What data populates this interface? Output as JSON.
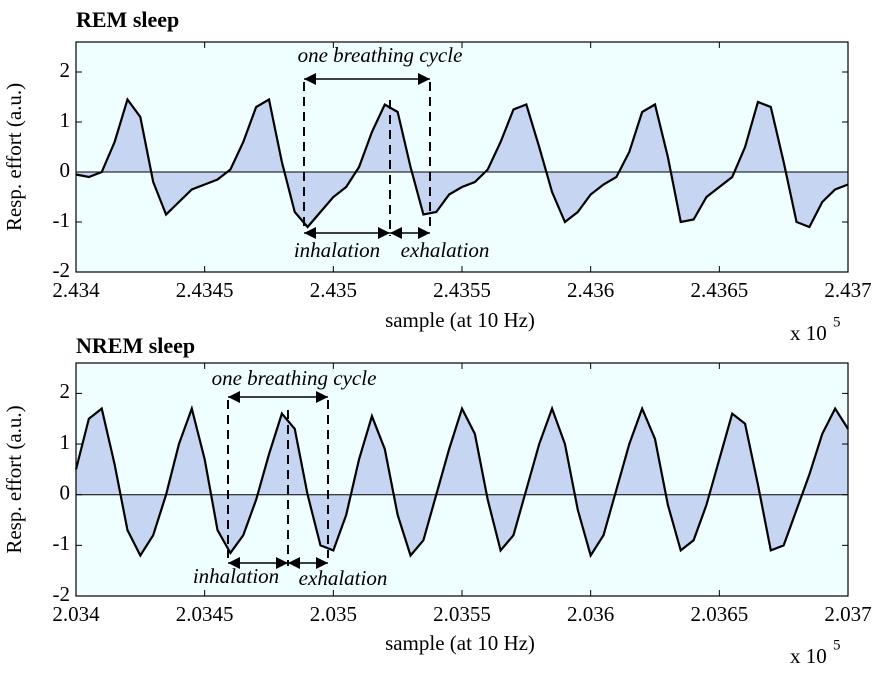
{
  "chart_data": [
    {
      "type": "line",
      "title": "REM sleep",
      "xlabel": "sample (at 10 Hz)",
      "ylabel": "Resp. effort (a.u.)",
      "x_scale_label": "x 10",
      "x_scale_exponent": "5",
      "annotations": {
        "cycle": "one breathing cycle",
        "inhalation": "inhalation",
        "exhalation": "exhalation"
      },
      "xlim": [
        2.434,
        2.437
      ],
      "xticks": [
        2.434,
        2.4345,
        2.435,
        2.4355,
        2.436,
        2.4365,
        2.437
      ],
      "ylim": [
        -2,
        2.6
      ],
      "yticks": [
        -2,
        -1,
        0,
        1,
        2
      ],
      "color": "#000000",
      "fill_color": "#c6d6f2",
      "background": "#effefe",
      "x": [
        2.434,
        2.43405,
        2.4341,
        2.43415,
        2.4342,
        2.43425,
        2.4343,
        2.43435,
        2.4344,
        2.43445,
        2.4345,
        2.43455,
        2.4346,
        2.43465,
        2.4347,
        2.43475,
        2.4348,
        2.43485,
        2.4349,
        2.43495,
        2.435,
        2.43505,
        2.4351,
        2.43515,
        2.4352,
        2.43525,
        2.4353,
        2.43535,
        2.4354,
        2.43545,
        2.4355,
        2.43555,
        2.4356,
        2.43565,
        2.4357,
        2.43575,
        2.4358,
        2.43585,
        2.4359,
        2.43595,
        2.436,
        2.43605,
        2.4361,
        2.43615,
        2.4362,
        2.43625,
        2.4363,
        2.43635,
        2.4364,
        2.43645,
        2.4365,
        2.43655,
        2.4366,
        2.43665,
        2.4367,
        2.43675,
        2.4368,
        2.43685,
        2.4369,
        2.43695,
        2.437
      ],
      "values": [
        -0.05,
        -0.1,
        0.0,
        0.6,
        1.45,
        1.1,
        -0.2,
        -0.85,
        -0.6,
        -0.35,
        -0.25,
        -0.15,
        0.05,
        0.6,
        1.3,
        1.45,
        0.2,
        -0.8,
        -1.1,
        -0.8,
        -0.5,
        -0.3,
        0.1,
        0.8,
        1.35,
        1.2,
        0.1,
        -0.85,
        -0.8,
        -0.45,
        -0.3,
        -0.2,
        0.05,
        0.6,
        1.25,
        1.35,
        0.5,
        -0.4,
        -1.0,
        -0.8,
        -0.45,
        -0.25,
        -0.1,
        0.4,
        1.2,
        1.35,
        0.3,
        -1.0,
        -0.95,
        -0.5,
        -0.3,
        -0.1,
        0.5,
        1.4,
        1.3,
        0.2,
        -1.0,
        -1.1,
        -0.6,
        -0.35,
        -0.25
      ]
    },
    {
      "type": "line",
      "title": "NREM sleep",
      "xlabel": "sample (at 10 Hz)",
      "ylabel": "Resp. effort (a.u.)",
      "x_scale_label": "x 10",
      "x_scale_exponent": "5",
      "annotations": {
        "cycle": "one breathing cycle",
        "inhalation": "inhalation",
        "exhalation": "exhalation"
      },
      "xlim": [
        2.034,
        2.037
      ],
      "xticks": [
        2.034,
        2.0345,
        2.035,
        2.0355,
        2.036,
        2.0365,
        2.037
      ],
      "ylim": [
        -2,
        2.6
      ],
      "yticks": [
        -2,
        -1,
        0,
        1,
        2
      ],
      "color": "#000000",
      "fill_color": "#c6d6f2",
      "background": "#effefe",
      "x": [
        2.034,
        2.03405,
        2.0341,
        2.03415,
        2.0342,
        2.03425,
        2.0343,
        2.03435,
        2.0344,
        2.03445,
        2.0345,
        2.03455,
        2.0346,
        2.03465,
        2.0347,
        2.03475,
        2.0348,
        2.03485,
        2.0349,
        2.03495,
        2.035,
        2.03505,
        2.0351,
        2.03515,
        2.0352,
        2.03525,
        2.0353,
        2.03535,
        2.0354,
        2.03545,
        2.0355,
        2.03555,
        2.0356,
        2.03565,
        2.0357,
        2.03575,
        2.0358,
        2.03585,
        2.0359,
        2.03595,
        2.036,
        2.03605,
        2.0361,
        2.03615,
        2.0362,
        2.03625,
        2.0363,
        2.03635,
        2.0364,
        2.03645,
        2.0365,
        2.03655,
        2.0366,
        2.03665,
        2.0367,
        2.03675,
        2.0368,
        2.03685,
        2.0369,
        2.03695,
        2.037
      ],
      "values": [
        0.5,
        1.5,
        1.7,
        0.6,
        -0.7,
        -1.2,
        -0.8,
        0.0,
        1.0,
        1.7,
        0.7,
        -0.7,
        -1.15,
        -0.8,
        -0.1,
        0.8,
        1.6,
        1.3,
        0.0,
        -1.0,
        -1.1,
        -0.4,
        0.7,
        1.55,
        0.9,
        -0.4,
        -1.2,
        -0.9,
        0.0,
        0.9,
        1.7,
        1.2,
        -0.1,
        -1.1,
        -0.8,
        0.1,
        1.0,
        1.7,
        1.0,
        -0.3,
        -1.2,
        -0.8,
        0.1,
        1.0,
        1.7,
        1.1,
        -0.2,
        -1.1,
        -0.9,
        -0.2,
        0.7,
        1.6,
        1.4,
        0.2,
        -1.1,
        -1.0,
        -0.3,
        0.4,
        1.2,
        1.7,
        1.3
      ]
    }
  ]
}
